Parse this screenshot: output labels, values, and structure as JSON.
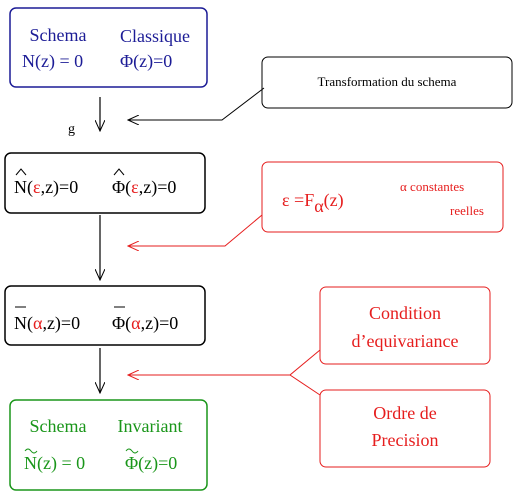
{
  "nodes": [
    {
      "title": [
        "Schema",
        "Classique"
      ],
      "equations": [
        "N(z) = 0",
        "Φ(z)=0"
      ]
    },
    {
      "equations": [
        [
          "N(",
          "ε",
          ",z)=0"
        ],
        [
          "Φ(",
          "ε",
          ",z)=0"
        ]
      ]
    },
    {
      "equations": [
        [
          "N(",
          "α",
          ",z)=0"
        ],
        [
          "Φ(",
          "α",
          ",z)=0"
        ]
      ]
    },
    {
      "title": [
        "Schema",
        "Invariant"
      ],
      "equations": [
        "N(z) = 0",
        "Φ(z)=0"
      ]
    }
  ],
  "edge_label": "g",
  "notes": [
    {
      "text": "Transformation du schema"
    },
    {
      "formula": [
        "ε =F",
        "α",
        "(z)"
      ],
      "remark": [
        "α constantes",
        "reelles"
      ]
    },
    {
      "lines": [
        "Condition",
        "d’equivariance"
      ]
    },
    {
      "lines": [
        "Ordre de",
        "Precision"
      ]
    }
  ]
}
